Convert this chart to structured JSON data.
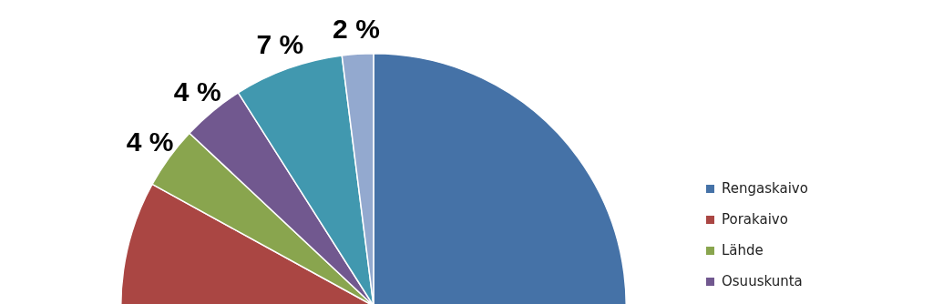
{
  "chart_data": {
    "type": "pie",
    "categories": [
      "Rengaskaivo",
      "Porakaivo",
      "Lähde",
      "Osuuskunta",
      null,
      null
    ],
    "values": [
      60,
      23,
      4,
      4,
      7,
      2
    ],
    "colors": [
      "#4572a7",
      "#aa4643",
      "#89a54e",
      "#71588f",
      "#4198af",
      "#93a9cf"
    ],
    "value_labels": [
      null,
      null,
      "4 %",
      "4 %",
      "7 %",
      "2 %"
    ],
    "legend": "right"
  }
}
